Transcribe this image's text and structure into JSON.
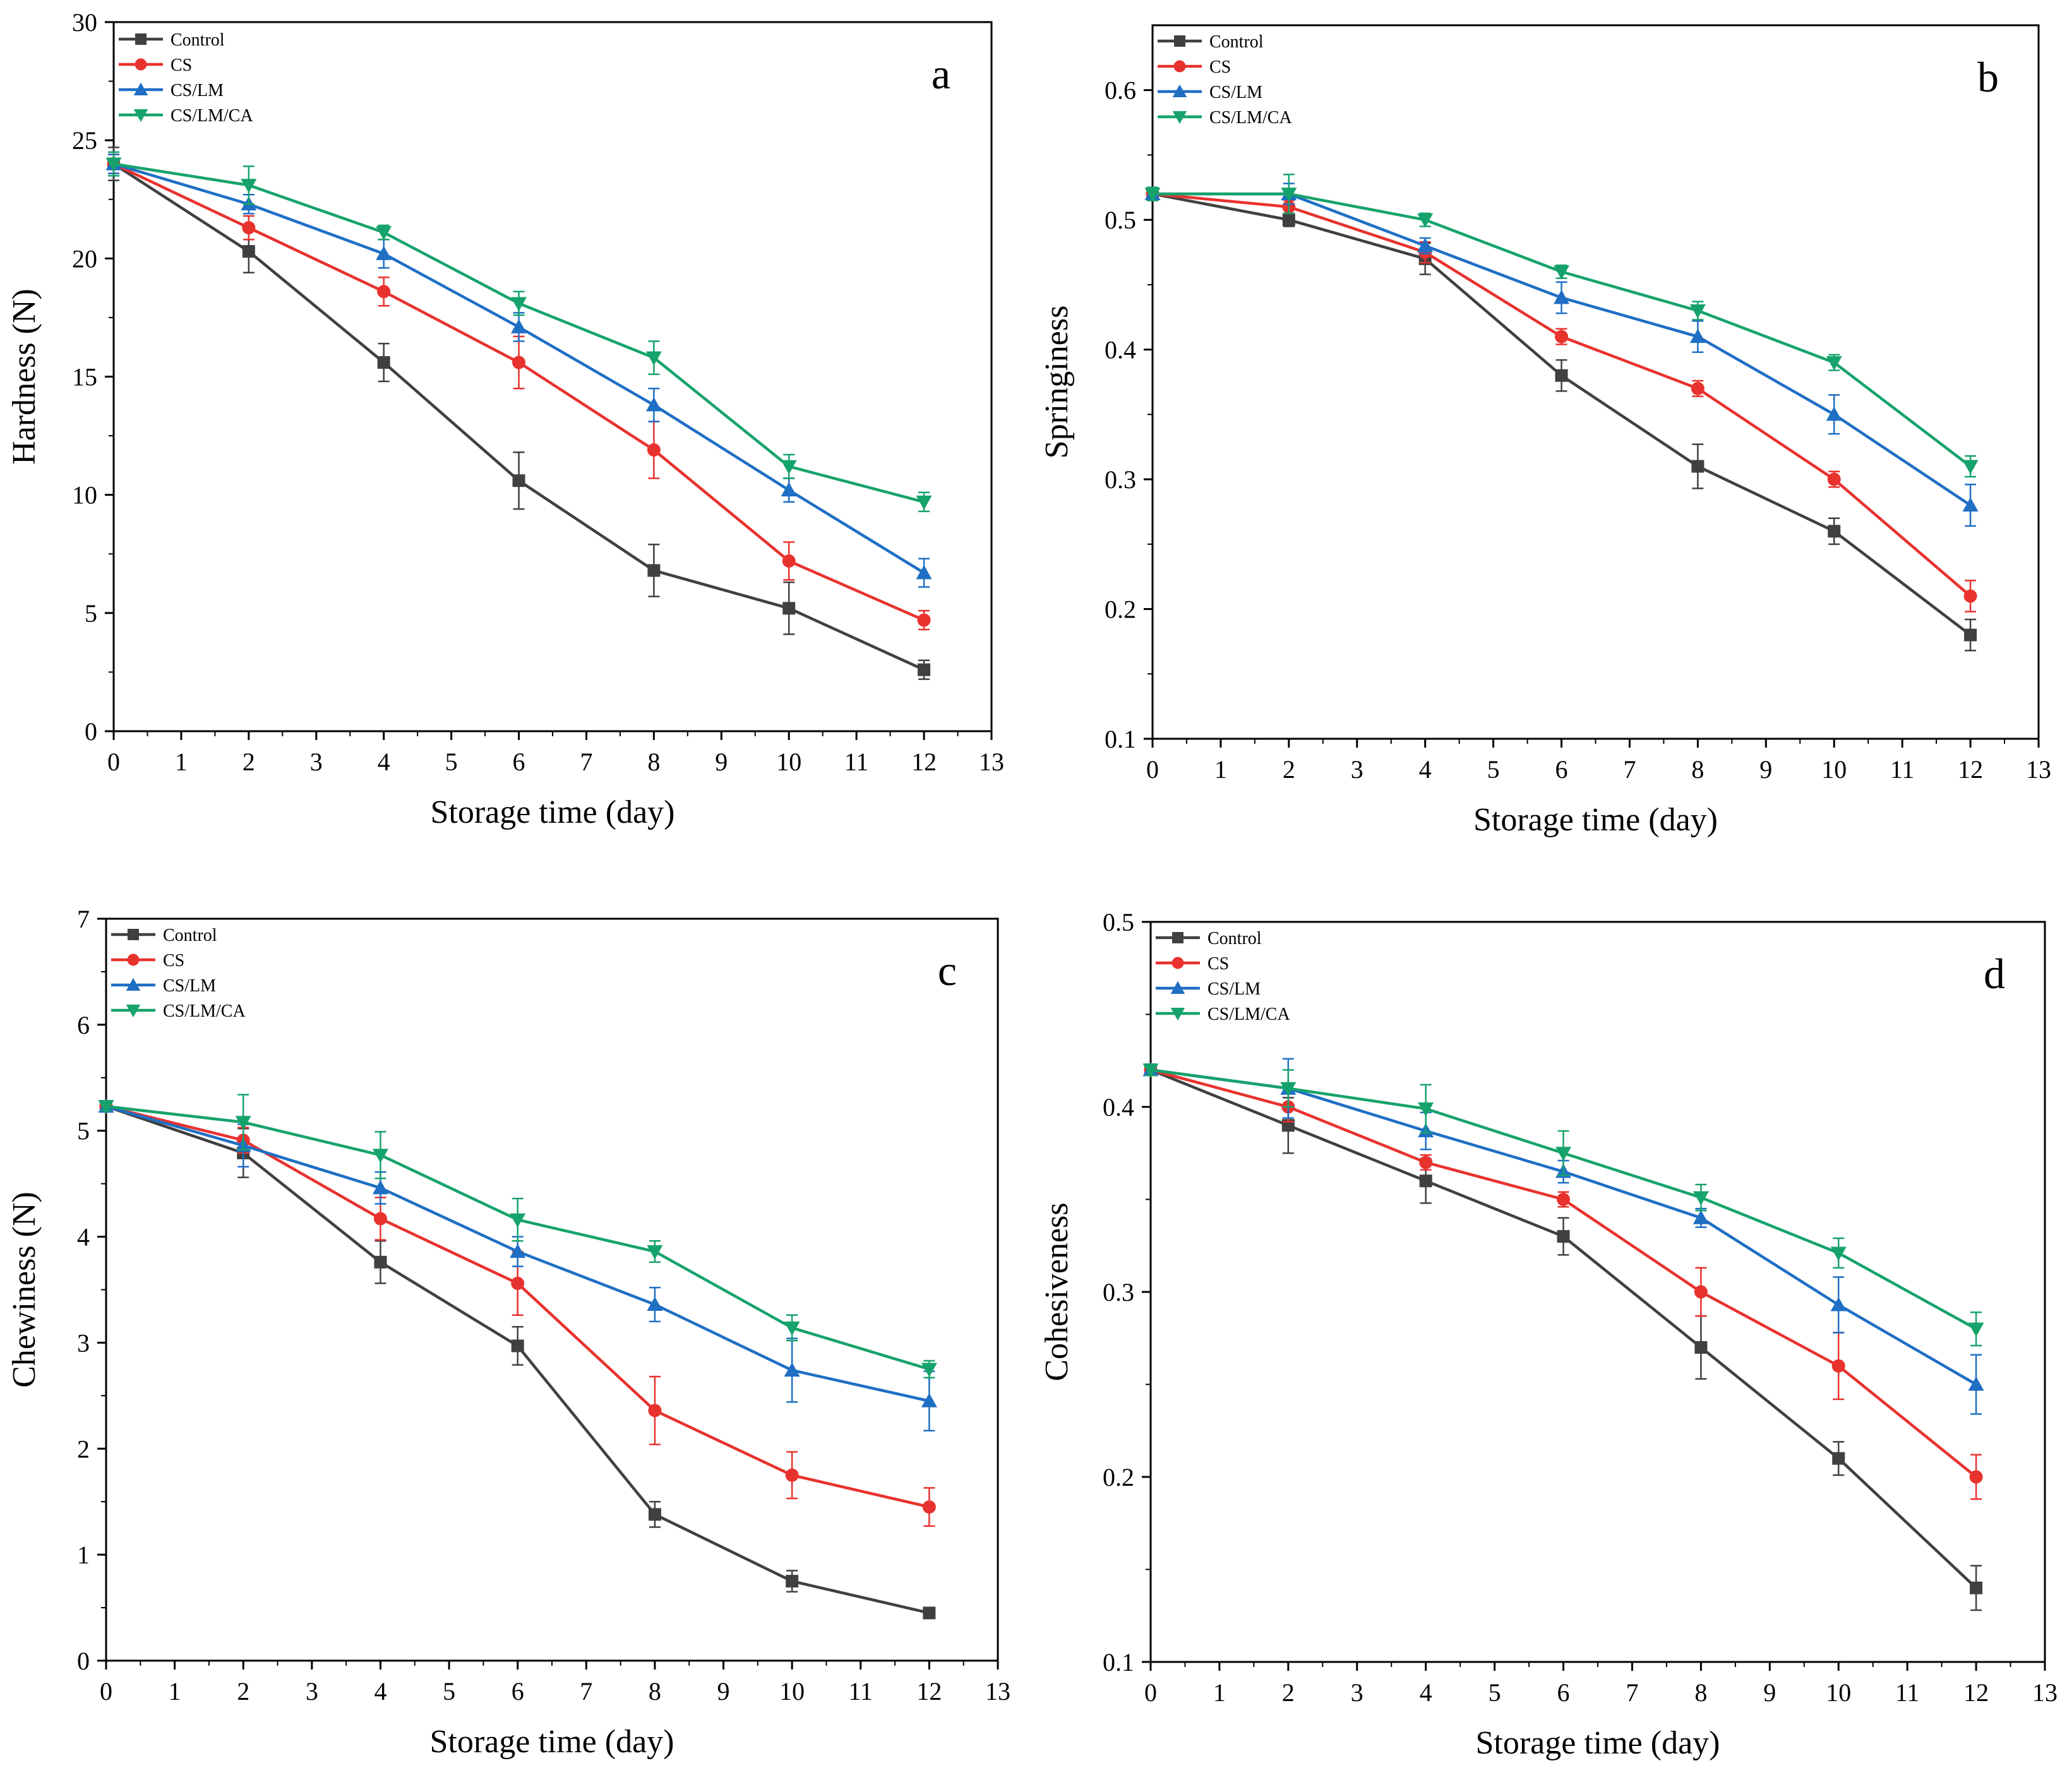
{
  "figure": {
    "series_colors": {
      "Control": "#404040",
      "CS": "#e8322e",
      "CS/LM": "#1f6fc4",
      "CS/LM/CA": "#16a36b"
    },
    "series_markers": {
      "Control": "square",
      "CS": "circle",
      "CS/LM": "triangle-up",
      "CS/LM/CA": "triangle-down"
    }
  },
  "chart_data": [
    {
      "type": "line",
      "panel_label": "a",
      "xlabel": "Storage time (day)",
      "ylabel": "Hardness (N)",
      "xlim": [
        0,
        13
      ],
      "ylim": [
        0,
        30
      ],
      "xticks": [
        "0",
        "1",
        "2",
        "3",
        "4",
        "5",
        "6",
        "7",
        "8",
        "9",
        "10",
        "11",
        "12",
        "13"
      ],
      "yticks": [
        "0",
        "5",
        "10",
        "15",
        "20",
        "25",
        "30"
      ],
      "x": [
        0,
        2,
        4,
        6,
        8,
        10,
        12
      ],
      "legend": [
        "Control",
        "CS",
        "CS/LM",
        "CS/LM/CA"
      ],
      "legend_position": "top-left",
      "series": [
        {
          "name": "Control",
          "values": [
            24.0,
            20.3,
            15.6,
            10.6,
            6.8,
            5.2,
            2.6
          ],
          "errors": [
            0.7,
            0.9,
            0.8,
            1.2,
            1.1,
            1.1,
            0.4
          ]
        },
        {
          "name": "CS",
          "values": [
            24.0,
            21.3,
            18.6,
            15.6,
            11.9,
            7.2,
            4.7
          ],
          "errors": [
            0.4,
            0.5,
            0.6,
            1.1,
            1.2,
            0.8,
            0.4
          ]
        },
        {
          "name": "CS/LM",
          "values": [
            24.0,
            22.3,
            20.2,
            17.1,
            13.8,
            10.2,
            6.7
          ],
          "errors": [
            0.4,
            0.4,
            0.6,
            0.6,
            0.7,
            0.5,
            0.6
          ]
        },
        {
          "name": "CS/LM/CA",
          "values": [
            24.0,
            23.1,
            21.1,
            18.1,
            15.8,
            11.2,
            9.7
          ],
          "errors": [
            0.5,
            0.8,
            0.3,
            0.5,
            0.7,
            0.5,
            0.4
          ]
        }
      ]
    },
    {
      "type": "line",
      "panel_label": "b",
      "xlabel": "Storage time (day)",
      "ylabel": "Springiness",
      "xlim": [
        0,
        13
      ],
      "ylim": [
        0.1,
        0.65
      ],
      "xticks": [
        "0",
        "1",
        "2",
        "3",
        "4",
        "5",
        "6",
        "7",
        "8",
        "9",
        "10",
        "11",
        "12",
        "13"
      ],
      "yticks": [
        "0.1",
        "0.2",
        "0.3",
        "0.4",
        "0.5",
        "0.6"
      ],
      "x": [
        0,
        2,
        4,
        6,
        8,
        10,
        12
      ],
      "legend": [
        "Control",
        "CS",
        "CS/LM",
        "CS/LM/CA"
      ],
      "legend_position": "top-left",
      "series": [
        {
          "name": "Control",
          "values": [
            0.52,
            0.5,
            0.47,
            0.38,
            0.31,
            0.26,
            0.18
          ],
          "errors": [
            0.005,
            0.005,
            0.012,
            0.012,
            0.017,
            0.01,
            0.012
          ]
        },
        {
          "name": "CS",
          "values": [
            0.52,
            0.51,
            0.475,
            0.41,
            0.37,
            0.3,
            0.21
          ],
          "errors": [
            0.005,
            0.005,
            0.008,
            0.006,
            0.006,
            0.006,
            0.012
          ]
        },
        {
          "name": "CS/LM",
          "values": [
            0.52,
            0.52,
            0.48,
            0.44,
            0.41,
            0.35,
            0.28
          ],
          "errors": [
            0.005,
            0.008,
            0.006,
            0.012,
            0.012,
            0.015,
            0.016
          ]
        },
        {
          "name": "CS/LM/CA",
          "values": [
            0.52,
            0.52,
            0.5,
            0.46,
            0.43,
            0.39,
            0.31
          ],
          "errors": [
            0.005,
            0.015,
            0.005,
            0.005,
            0.007,
            0.006,
            0.008
          ]
        }
      ]
    },
    {
      "type": "line",
      "panel_label": "c",
      "xlabel": "Storage time (day)",
      "ylabel": "Chewiness (N)",
      "xlim": [
        0,
        13
      ],
      "ylim": [
        0,
        7
      ],
      "xticks": [
        "0",
        "1",
        "2",
        "3",
        "4",
        "5",
        "6",
        "7",
        "8",
        "9",
        "10",
        "11",
        "12",
        "13"
      ],
      "yticks": [
        "0",
        "1",
        "2",
        "3",
        "4",
        "5",
        "6",
        "7"
      ],
      "x": [
        0,
        2,
        4,
        6,
        8,
        10,
        12
      ],
      "legend": [
        "Control",
        "CS",
        "CS/LM",
        "CS/LM/CA"
      ],
      "legend_position": "top-left",
      "series": [
        {
          "name": "Control",
          "values": [
            5.23,
            4.79,
            3.76,
            2.97,
            1.38,
            0.75,
            0.45
          ],
          "errors": [
            0.04,
            0.23,
            0.2,
            0.18,
            0.12,
            0.1,
            0.03
          ]
        },
        {
          "name": "CS",
          "values": [
            5.23,
            4.91,
            4.17,
            3.56,
            2.36,
            1.75,
            1.45
          ],
          "errors": [
            0.04,
            0.12,
            0.2,
            0.3,
            0.32,
            0.22,
            0.18
          ]
        },
        {
          "name": "CS/LM",
          "values": [
            5.23,
            4.86,
            4.46,
            3.86,
            3.36,
            2.74,
            2.45
          ],
          "errors": [
            0.04,
            0.2,
            0.15,
            0.14,
            0.16,
            0.3,
            0.28
          ]
        },
        {
          "name": "CS/LM/CA",
          "values": [
            5.23,
            5.08,
            4.77,
            4.16,
            3.86,
            3.14,
            2.75
          ],
          "errors": [
            0.04,
            0.26,
            0.22,
            0.2,
            0.1,
            0.12,
            0.08
          ]
        }
      ]
    },
    {
      "type": "line",
      "panel_label": "d",
      "xlabel": "Storage time (day)",
      "ylabel": "Cohesiveness",
      "xlim": [
        0,
        13
      ],
      "ylim": [
        0.1,
        0.5
      ],
      "xticks": [
        "0",
        "1",
        "2",
        "3",
        "4",
        "5",
        "6",
        "7",
        "8",
        "9",
        "10",
        "11",
        "12",
        "13"
      ],
      "yticks": [
        "0.1",
        "0.2",
        "0.3",
        "0.4",
        "0.5"
      ],
      "x": [
        0,
        2,
        4,
        6,
        8,
        10,
        12
      ],
      "legend": [
        "Control",
        "CS",
        "CS/LM",
        "CS/LM/CA"
      ],
      "legend_position": "top-left",
      "series": [
        {
          "name": "Control",
          "values": [
            0.42,
            0.39,
            0.36,
            0.33,
            0.27,
            0.21,
            0.14
          ],
          "errors": [
            0.003,
            0.015,
            0.012,
            0.01,
            0.017,
            0.009,
            0.012
          ]
        },
        {
          "name": "CS",
          "values": [
            0.42,
            0.4,
            0.37,
            0.35,
            0.3,
            0.26,
            0.2
          ],
          "errors": [
            0.003,
            0.008,
            0.004,
            0.004,
            0.013,
            0.018,
            0.012
          ]
        },
        {
          "name": "CS/LM",
          "values": [
            0.42,
            0.41,
            0.387,
            0.365,
            0.34,
            0.293,
            0.25
          ],
          "errors": [
            0.003,
            0.016,
            0.01,
            0.006,
            0.005,
            0.015,
            0.016
          ]
        },
        {
          "name": "CS/LM/CA",
          "values": [
            0.42,
            0.41,
            0.399,
            0.375,
            0.351,
            0.321,
            0.28
          ],
          "errors": [
            0.003,
            0.01,
            0.013,
            0.012,
            0.007,
            0.008,
            0.009
          ]
        }
      ]
    }
  ]
}
